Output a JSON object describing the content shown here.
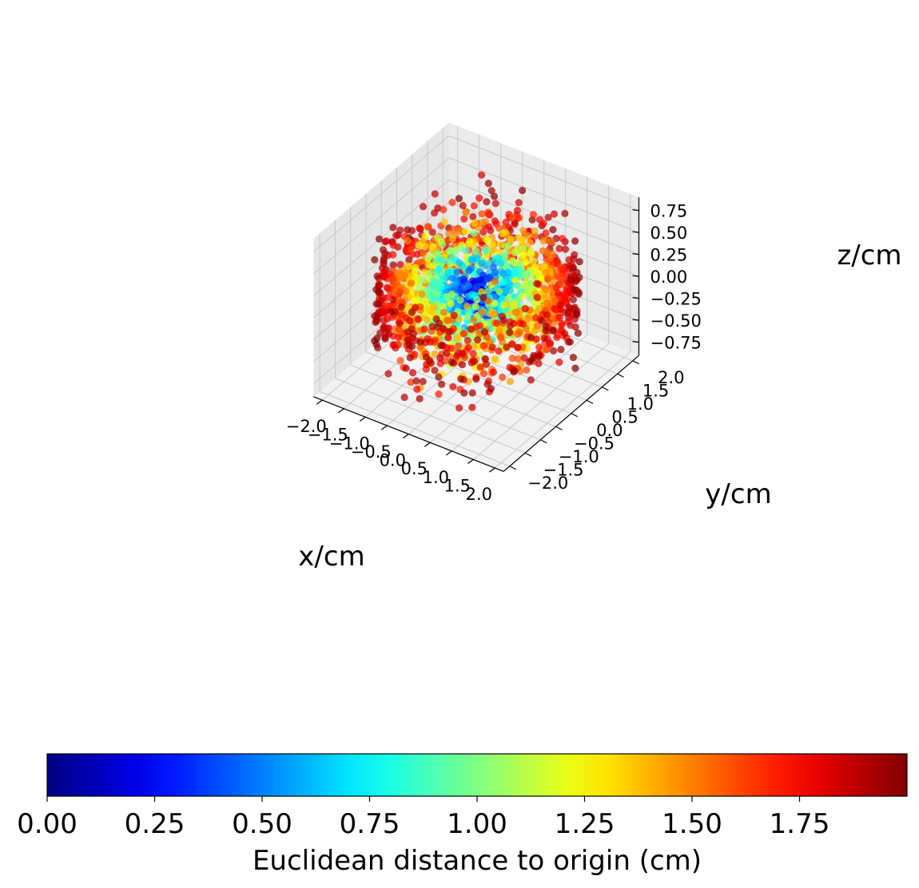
{
  "chart_data": {
    "type": "scatter",
    "projection": "3d",
    "description_of_data": "point cloud colored by euclidean distance",
    "x_label": "x/cm",
    "y_label": "y/cm",
    "z_label": "z/cm",
    "x_ticks": [
      "−2.0",
      "−1.5",
      "−1.0",
      "−0.5",
      "0.0",
      "0.5",
      "1.0",
      "1.5",
      "2.0"
    ],
    "x_tick_values": [
      -2.0,
      -1.5,
      -1.0,
      -0.5,
      0.0,
      0.5,
      1.0,
      1.5,
      2.0
    ],
    "y_ticks": [
      "−2.0",
      "−1.5",
      "−1.0",
      "−0.5",
      "0.0",
      "0.5",
      "1.0",
      "1.5",
      "2.0"
    ],
    "y_tick_values": [
      -2.0,
      -1.5,
      -1.0,
      -0.5,
      0.0,
      0.5,
      1.0,
      1.5,
      2.0
    ],
    "z_ticks": [
      "−0.75",
      "−0.50",
      "−0.25",
      "0.00",
      "0.25",
      "0.50",
      "0.75"
    ],
    "z_tick_values": [
      -0.75,
      -0.5,
      -0.25,
      0.0,
      0.25,
      0.5,
      0.75
    ],
    "xlim": [
      -2.2,
      2.2
    ],
    "ylim": [
      -2.2,
      2.2
    ],
    "zlim": [
      -0.9,
      0.9
    ],
    "colormap": "jet",
    "colorbar": {
      "label": "Euclidean distance to origin (cm)",
      "range": [
        0,
        2.0
      ],
      "ticks": [
        "0.00",
        "0.25",
        "0.50",
        "0.75",
        "1.00",
        "1.25",
        "1.50",
        "1.75"
      ],
      "tick_values": [
        0,
        0.25,
        0.5,
        0.75,
        1.0,
        1.25,
        1.5,
        1.75
      ]
    },
    "point_count": 1800,
    "point_distribution": {
      "shape": "flattened disk around origin",
      "radius_range_cm": [
        0,
        2.0
      ],
      "z_extent_cm": [
        -0.8,
        0.8
      ]
    }
  },
  "colors": {
    "pane": "#f2f2f2",
    "grid": "#c8c8c8",
    "jet_stops": [
      "#00007f",
      "#0000ff",
      "#007fff",
      "#00ffff",
      "#7fff7f",
      "#ffff00",
      "#ff7f00",
      "#ff0000",
      "#7f0000"
    ]
  }
}
